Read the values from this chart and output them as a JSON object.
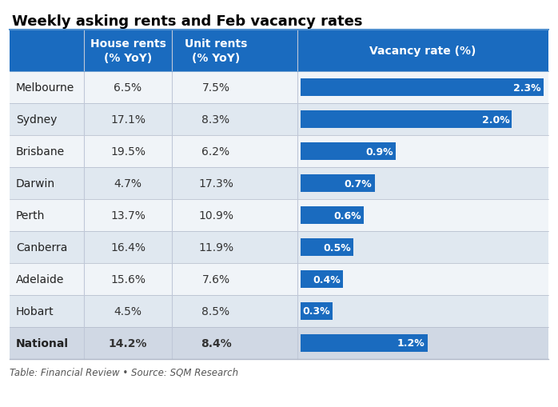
{
  "title": "Weekly asking rents and Feb vacancy rates",
  "footer": "Table: Financial Review • Source: SQM Research",
  "col_headers": [
    "House rents\n(% YoY)",
    "Unit rents\n(% YoY)",
    "Vacancy rate (%)"
  ],
  "cities": [
    "Melbourne",
    "Sydney",
    "Brisbane",
    "Darwin",
    "Perth",
    "Canberra",
    "Adelaide",
    "Hobart",
    "National"
  ],
  "house_rents": [
    "6.5%",
    "17.1%",
    "19.5%",
    "4.7%",
    "13.7%",
    "16.4%",
    "15.6%",
    "4.5%",
    "14.2%"
  ],
  "unit_rents": [
    "7.5%",
    "8.3%",
    "6.2%",
    "17.3%",
    "10.9%",
    "11.9%",
    "7.6%",
    "8.5%",
    "8.4%"
  ],
  "vacancy_rates": [
    2.3,
    2.0,
    0.9,
    0.7,
    0.6,
    0.5,
    0.4,
    0.3,
    1.2
  ],
  "vacancy_labels": [
    "2.3%",
    "2.0%",
    "0.9%",
    "0.7%",
    "0.6%",
    "0.5%",
    "0.4%",
    "0.3%",
    "1.2%"
  ],
  "is_national": [
    false,
    false,
    false,
    false,
    false,
    false,
    false,
    false,
    true
  ],
  "bar_color": "#1a6bbf",
  "header_bg": "#1a6bbf",
  "header_text": "#ffffff",
  "row_bg_odd": "#f0f4f8",
  "row_bg_even": "#e0e8f0",
  "national_bg": "#d0d8e4",
  "title_fontsize": 13,
  "header_fontsize": 10,
  "cell_fontsize": 10,
  "bar_max": 2.3,
  "background_color": "#ffffff"
}
